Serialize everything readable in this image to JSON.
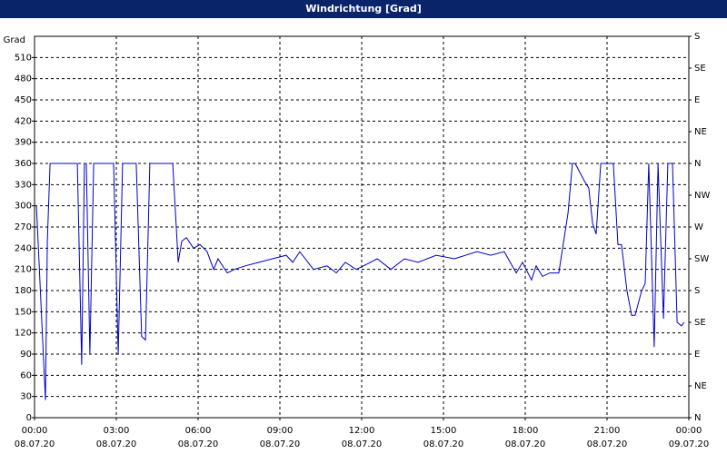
{
  "chart_data": {
    "type": "line",
    "title": "Windrichtung [Grad]",
    "y_label": "Grad",
    "x": [
      0.07,
      0.4,
      0.47,
      0.57,
      1.57,
      1.73,
      1.83,
      1.9,
      2.03,
      2.17,
      2.9,
      3.07,
      3.23,
      3.73,
      3.93,
      4.07,
      4.23,
      5.07,
      5.27,
      5.4,
      5.57,
      5.83,
      6.07,
      6.33,
      6.57,
      6.73,
      7.07,
      7.33,
      7.73,
      8.23,
      8.73,
      9.23,
      9.47,
      9.73,
      10.23,
      10.73,
      11.07,
      11.4,
      11.8,
      12.07,
      12.57,
      13.07,
      13.57,
      14.07,
      14.73,
      15.4,
      16.23,
      16.73,
      17.23,
      17.67,
      17.9,
      18.23,
      18.4,
      18.63,
      18.9,
      19.23,
      19.57,
      19.73,
      19.83,
      20.17,
      20.33,
      20.47,
      20.6,
      20.77,
      21.23,
      21.4,
      21.53,
      21.73,
      21.9,
      22.03,
      22.27,
      22.4,
      22.53,
      22.73,
      22.87,
      23.07,
      23.23,
      23.4,
      23.47,
      23.57,
      23.73,
      23.83
    ],
    "series": [
      {
        "name": "Windrichtung",
        "color": "#0000c8",
        "values": [
          300,
          25,
          250,
          360,
          360,
          75,
          360,
          360,
          90,
          360,
          360,
          90,
          360,
          360,
          115,
          110,
          360,
          360,
          220,
          250,
          255,
          240,
          245,
          235,
          210,
          225,
          205,
          210,
          215,
          220,
          225,
          230,
          220,
          235,
          210,
          215,
          205,
          220,
          210,
          215,
          225,
          210,
          225,
          220,
          230,
          225,
          235,
          230,
          235,
          205,
          220,
          195,
          215,
          200,
          205,
          205,
          290,
          360,
          360,
          335,
          325,
          275,
          260,
          360,
          360,
          245,
          245,
          180,
          145,
          145,
          180,
          190,
          360,
          100,
          360,
          140,
          360,
          360,
          270,
          135,
          130,
          135
        ]
      }
    ],
    "xlim": [
      0,
      24
    ],
    "xticks": [
      {
        "value": 0,
        "label": "00:00"
      },
      {
        "value": 3,
        "label": "03:00"
      },
      {
        "value": 6,
        "label": "06:00"
      },
      {
        "value": 9,
        "label": "09:00"
      },
      {
        "value": 12,
        "label": "12:00"
      },
      {
        "value": 15,
        "label": "15:00"
      },
      {
        "value": 18,
        "label": "18:00"
      },
      {
        "value": 21,
        "label": "21:00"
      },
      {
        "value": 24,
        "label": "00:00"
      }
    ],
    "xtick_dates": [
      "08.07.20",
      "08.07.20",
      "08.07.20",
      "08.07.20",
      "08.07.20",
      "08.07.20",
      "08.07.20",
      "08.07.20",
      "09.07.20"
    ],
    "ylim": [
      0,
      540
    ],
    "yticks": [
      0,
      30,
      60,
      90,
      120,
      150,
      180,
      210,
      240,
      270,
      300,
      330,
      360,
      390,
      420,
      450,
      480,
      510
    ],
    "y2lim": [
      0,
      540
    ],
    "y2ticks": [
      {
        "value": 0,
        "label": "N"
      },
      {
        "value": 45,
        "label": "NE"
      },
      {
        "value": 90,
        "label": "E"
      },
      {
        "value": 135,
        "label": "SE"
      },
      {
        "value": 180,
        "label": "S"
      },
      {
        "value": 225,
        "label": "SW"
      },
      {
        "value": 270,
        "label": "W"
      },
      {
        "value": 315,
        "label": "NW"
      },
      {
        "value": 360,
        "label": "N"
      },
      {
        "value": 405,
        "label": "NE"
      },
      {
        "value": 450,
        "label": "E"
      },
      {
        "value": 495,
        "label": "SE"
      },
      {
        "value": 540,
        "label": "S"
      }
    ],
    "grid": true
  }
}
